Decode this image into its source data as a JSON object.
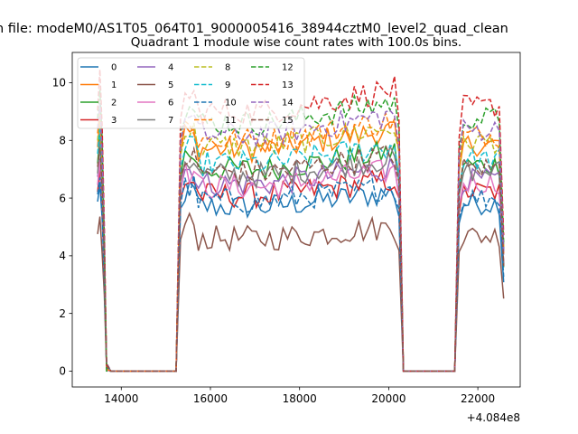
{
  "figure": {
    "suptitle": "n file: modeM0/AS1T05_064T01_9000005416_38944cztM0_level2_quad_clean",
    "title": "Quadrant 1 module wise count rates with 100.0s bins.",
    "offset_label": "+4.084e8"
  },
  "chart_data": {
    "type": "line",
    "title": "Quadrant 1 module wise count rates with 100.0s bins.",
    "xlabel": "",
    "ylabel": "",
    "x_offset": 408400000,
    "xlim": [
      12900,
      22950
    ],
    "ylim": [
      -0.55,
      11.05
    ],
    "xticks": [
      14000,
      16000,
      18000,
      20000,
      22000
    ],
    "yticks": [
      0,
      2,
      4,
      6,
      8,
      10
    ],
    "grid": false,
    "legend": {
      "placement": "top-left",
      "columns": 4
    },
    "segments": [
      {
        "start": 13470,
        "end": 13670,
        "gap_after_end": 13770
      },
      {
        "start": 15330,
        "end": 16600,
        "end2": 20230,
        "ramp_end": 20330
      },
      {
        "start": 21580,
        "end": 22580
      }
    ],
    "series": [
      {
        "name": "0",
        "color": "#1f77b4",
        "dash": "solid",
        "level": 5.7
      },
      {
        "name": "1",
        "color": "#ff7f0e",
        "dash": "solid",
        "level": 7.7
      },
      {
        "name": "2",
        "color": "#2ca02c",
        "dash": "solid",
        "level": 7.0
      },
      {
        "name": "3",
        "color": "#d62728",
        "dash": "solid",
        "level": 6.1
      },
      {
        "name": "4",
        "color": "#9467bd",
        "dash": "solid",
        "level": 6.5
      },
      {
        "name": "5",
        "color": "#8c564b",
        "dash": "solid",
        "level": 4.6
      },
      {
        "name": "6",
        "color": "#e377c2",
        "dash": "solid",
        "level": 6.4
      },
      {
        "name": "7",
        "color": "#7f7f7f",
        "dash": "solid",
        "level": 6.8
      },
      {
        "name": "8",
        "color": "#bcbd22",
        "dash": "dashed",
        "level": 7.8
      },
      {
        "name": "9",
        "color": "#17becf",
        "dash": "dashed",
        "level": 7.2
      },
      {
        "name": "10",
        "color": "#1f77b4",
        "dash": "dashed",
        "level": 5.9
      },
      {
        "name": "11",
        "color": "#ff7f0e",
        "dash": "dashed",
        "level": 8.0
      },
      {
        "name": "12",
        "color": "#2ca02c",
        "dash": "dashed",
        "level": 8.6
      },
      {
        "name": "13",
        "color": "#d62728",
        "dash": "dashed",
        "level": 9.0
      },
      {
        "name": "14",
        "color": "#9467bd",
        "dash": "dashed",
        "level": 8.2
      },
      {
        "name": "15",
        "color": "#8c564b",
        "dash": "dashed",
        "level": 6.9
      }
    ]
  }
}
